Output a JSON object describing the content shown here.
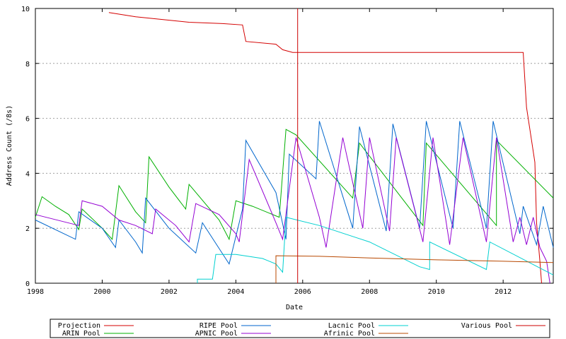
{
  "chart_data": {
    "type": "line",
    "title": "",
    "xlabel": "Date",
    "ylabel": "Address Count (/8s)",
    "xlim": [
      1998,
      2013.5
    ],
    "ylim": [
      0,
      10
    ],
    "x_ticks": [
      1998,
      2000,
      2002,
      2004,
      2006,
      2008,
      2010,
      2012
    ],
    "x_tick_labels": [
      "1998",
      "2000",
      "2002",
      "2004",
      "2006",
      "2008",
      "2010",
      "2012"
    ],
    "y_ticks": [
      0,
      2,
      4,
      6,
      8,
      10
    ],
    "y_tick_labels": [
      "0",
      "2",
      "4",
      "6",
      "8",
      "10"
    ],
    "grid": "horizontal dotted",
    "legend_position": "bottom",
    "series": [
      {
        "name": "Projection",
        "color": "#d40000",
        "values": [
          [
            2000.2,
            9.85
          ],
          [
            2001.0,
            9.7
          ],
          [
            2001.8,
            9.6
          ],
          [
            2002.6,
            9.5
          ],
          [
            2003.6,
            9.45
          ],
          [
            2004.2,
            9.4
          ],
          [
            2004.3,
            8.8
          ],
          [
            2005.2,
            8.7
          ],
          [
            2005.4,
            8.5
          ],
          [
            2005.7,
            8.4
          ],
          [
            2012.6,
            8.4
          ],
          [
            2012.7,
            6.4
          ],
          [
            2012.85,
            5.2
          ],
          [
            2012.95,
            4.4
          ],
          [
            2013.0,
            2.2
          ],
          [
            2013.1,
            0.8
          ],
          [
            2013.15,
            0
          ]
        ]
      },
      {
        "name": "ARIN Pool",
        "color": "#00b000",
        "values": [
          [
            1998.0,
            2.4
          ],
          [
            1998.2,
            3.15
          ],
          [
            1998.6,
            2.8
          ],
          [
            1999.0,
            2.5
          ],
          [
            1999.3,
            1.95
          ],
          [
            1999.4,
            2.7
          ],
          [
            2000.0,
            2.0
          ],
          [
            2000.3,
            1.6
          ],
          [
            2000.5,
            3.55
          ],
          [
            2001.0,
            2.6
          ],
          [
            2001.3,
            2.2
          ],
          [
            2001.4,
            4.6
          ],
          [
            2002.0,
            3.5
          ],
          [
            2002.5,
            2.7
          ],
          [
            2002.6,
            3.6
          ],
          [
            2003.5,
            2.3
          ],
          [
            2003.8,
            1.6
          ],
          [
            2004.0,
            3.0
          ],
          [
            2004.5,
            2.8
          ],
          [
            2005.3,
            2.4
          ],
          [
            2005.5,
            5.6
          ],
          [
            2005.8,
            5.4
          ],
          [
            2007.5,
            3.1
          ],
          [
            2007.7,
            5.1
          ],
          [
            2009.6,
            2.1
          ],
          [
            2009.7,
            5.1
          ],
          [
            2011.8,
            2.1
          ],
          [
            2011.8,
            5.2
          ],
          [
            2013.5,
            3.1
          ]
        ]
      },
      {
        "name": "RIPE Pool",
        "color": "#0066cc",
        "values": [
          [
            1998.0,
            2.3
          ],
          [
            1999.2,
            1.6
          ],
          [
            1999.3,
            2.6
          ],
          [
            2000.0,
            2.0
          ],
          [
            2000.4,
            1.3
          ],
          [
            2000.5,
            2.3
          ],
          [
            2001.0,
            1.5
          ],
          [
            2001.2,
            1.1
          ],
          [
            2001.3,
            3.1
          ],
          [
            2002.0,
            2.0
          ],
          [
            2002.8,
            1.1
          ],
          [
            2003.0,
            2.2
          ],
          [
            2003.8,
            0.7
          ],
          [
            2004.2,
            2.7
          ],
          [
            2004.3,
            5.2
          ],
          [
            2005.2,
            3.3
          ],
          [
            2005.5,
            1.6
          ],
          [
            2005.6,
            4.7
          ],
          [
            2006.4,
            3.8
          ],
          [
            2006.5,
            5.9
          ],
          [
            2007.5,
            2.0
          ],
          [
            2007.7,
            5.7
          ],
          [
            2008.5,
            1.9
          ],
          [
            2008.7,
            5.8
          ],
          [
            2009.5,
            2.0
          ],
          [
            2009.7,
            5.9
          ],
          [
            2010.5,
            2.0
          ],
          [
            2010.7,
            5.9
          ],
          [
            2011.5,
            2.0
          ],
          [
            2011.7,
            5.9
          ],
          [
            2012.5,
            1.8
          ],
          [
            2012.6,
            2.8
          ],
          [
            2013.0,
            1.4
          ],
          [
            2013.2,
            2.8
          ],
          [
            2013.5,
            1.3
          ]
        ]
      },
      {
        "name": "APNIC Pool",
        "color": "#9400d3",
        "values": [
          [
            1998.0,
            2.5
          ],
          [
            1999.3,
            2.1
          ],
          [
            1999.4,
            3.0
          ],
          [
            2000.0,
            2.8
          ],
          [
            2000.5,
            2.3
          ],
          [
            2001.0,
            2.1
          ],
          [
            2001.5,
            1.8
          ],
          [
            2001.6,
            2.7
          ],
          [
            2002.2,
            2.1
          ],
          [
            2002.6,
            1.5
          ],
          [
            2002.8,
            2.9
          ],
          [
            2003.5,
            2.5
          ],
          [
            2004.0,
            1.8
          ],
          [
            2004.1,
            1.5
          ],
          [
            2004.4,
            4.5
          ],
          [
            2005.2,
            2.2
          ],
          [
            2005.4,
            1.6
          ],
          [
            2005.8,
            5.3
          ],
          [
            2006.5,
            2.4
          ],
          [
            2006.7,
            1.3
          ],
          [
            2007.2,
            5.3
          ],
          [
            2007.8,
            2.0
          ],
          [
            2008.0,
            5.3
          ],
          [
            2008.6,
            1.9
          ],
          [
            2008.8,
            5.3
          ],
          [
            2009.6,
            1.5
          ],
          [
            2009.9,
            5.3
          ],
          [
            2010.4,
            1.4
          ],
          [
            2010.8,
            5.3
          ],
          [
            2011.5,
            1.5
          ],
          [
            2011.8,
            5.3
          ],
          [
            2012.3,
            1.5
          ],
          [
            2012.5,
            2.4
          ],
          [
            2012.7,
            1.4
          ],
          [
            2012.9,
            2.4
          ],
          [
            2013.1,
            1.3
          ],
          [
            2013.3,
            0.8
          ],
          [
            2013.4,
            0
          ]
        ]
      },
      {
        "name": "Lacnic Pool",
        "color": "#00d0d0",
        "values": [
          [
            2002.85,
            0
          ],
          [
            2002.85,
            0.15
          ],
          [
            2003.3,
            0.15
          ],
          [
            2003.4,
            1.05
          ],
          [
            2004.0,
            1.05
          ],
          [
            2004.8,
            0.9
          ],
          [
            2005.2,
            0.7
          ],
          [
            2005.4,
            0.4
          ],
          [
            2005.5,
            2.4
          ],
          [
            2006.5,
            2.1
          ],
          [
            2008.0,
            1.5
          ],
          [
            2009.5,
            0.6
          ],
          [
            2009.8,
            0.5
          ],
          [
            2009.8,
            1.5
          ],
          [
            2011.5,
            0.5
          ],
          [
            2011.6,
            1.5
          ],
          [
            2013.5,
            0.3
          ]
        ]
      },
      {
        "name": "Afrinic Pool",
        "color": "#b84800",
        "values": [
          [
            2005.2,
            0
          ],
          [
            2005.2,
            1.0
          ],
          [
            2006.5,
            0.98
          ],
          [
            2008.0,
            0.92
          ],
          [
            2010.0,
            0.85
          ],
          [
            2012.0,
            0.8
          ],
          [
            2013.5,
            0.75
          ]
        ]
      },
      {
        "name": "Various Pool",
        "color": "#cc0000",
        "values": [
          [
            2005.85,
            0
          ],
          [
            2005.85,
            10.0
          ]
        ]
      }
    ]
  }
}
